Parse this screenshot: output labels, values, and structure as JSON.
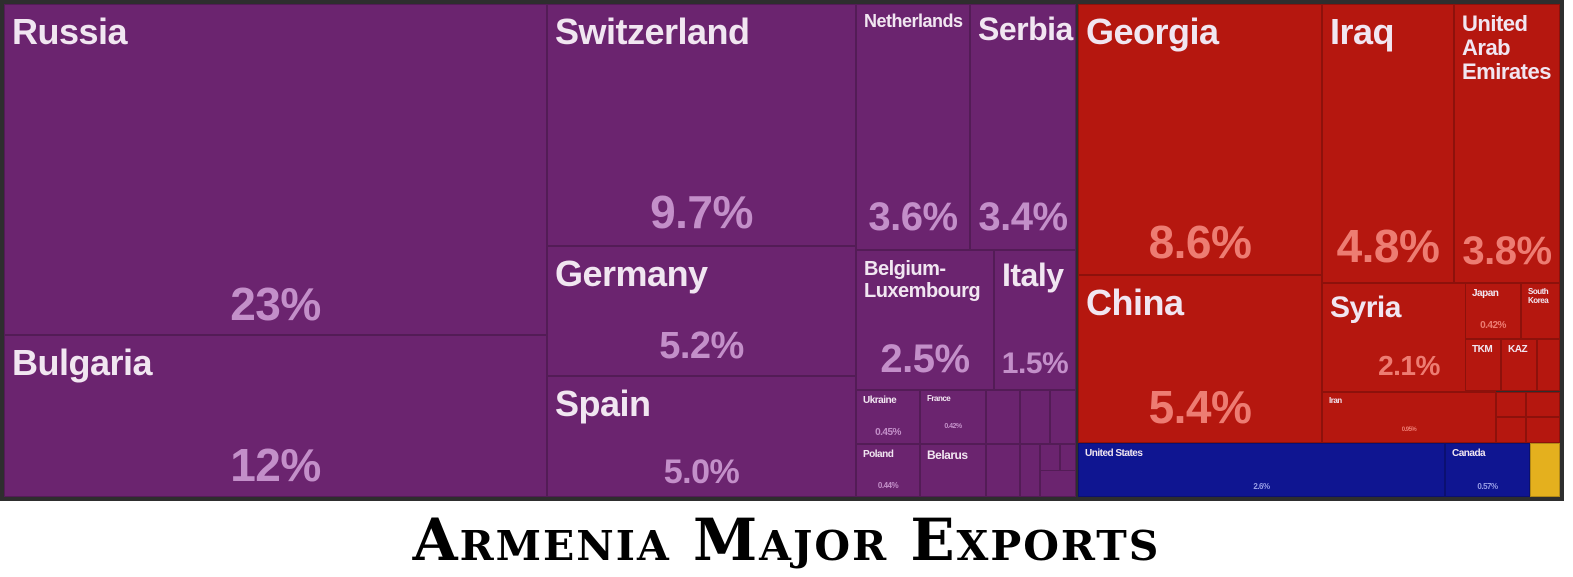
{
  "title": "Armenia Major Exports",
  "colors": {
    "europe": "#6b246f",
    "asia": "#b5170f",
    "north_america": "#0f1591",
    "other": "#e4b01e"
  },
  "chart_data": {
    "type": "treemap",
    "title": "Armenia Major Exports",
    "unit": "%",
    "tiles": [
      {
        "name": "Russia",
        "value": 23,
        "label": "23%",
        "group": "europe"
      },
      {
        "name": "Bulgaria",
        "value": 12,
        "label": "12%",
        "group": "europe"
      },
      {
        "name": "Switzerland",
        "value": 9.7,
        "label": "9.7%",
        "group": "europe"
      },
      {
        "name": "Germany",
        "value": 5.2,
        "label": "5.2%",
        "group": "europe"
      },
      {
        "name": "Spain",
        "value": 5.0,
        "label": "5.0%",
        "group": "europe"
      },
      {
        "name": "Netherlands",
        "value": 3.6,
        "label": "3.6%",
        "group": "europe"
      },
      {
        "name": "Serbia",
        "value": 3.4,
        "label": "3.4%",
        "group": "europe"
      },
      {
        "name": "Belgium-\nLuxembourg",
        "value": 2.5,
        "label": "2.5%",
        "group": "europe"
      },
      {
        "name": "Italy",
        "value": 1.5,
        "label": "1.5%",
        "group": "europe"
      },
      {
        "name": "Ukraine",
        "value": 0.45,
        "label": "0.45%",
        "group": "europe"
      },
      {
        "name": "France",
        "value": 0.42,
        "label": "0.42%",
        "group": "europe"
      },
      {
        "name": "Poland",
        "value": 0.44,
        "label": "0.44%",
        "group": "europe"
      },
      {
        "name": "Belarus",
        "value": null,
        "label": "",
        "group": "europe"
      },
      {
        "name": "Georgia",
        "value": 8.6,
        "label": "8.6%",
        "group": "asia"
      },
      {
        "name": "China",
        "value": 5.4,
        "label": "5.4%",
        "group": "asia"
      },
      {
        "name": "Iraq",
        "value": 4.8,
        "label": "4.8%",
        "group": "asia"
      },
      {
        "name": "United\nArab\nEmirates",
        "value": 3.8,
        "label": "3.8%",
        "group": "asia"
      },
      {
        "name": "Syria",
        "value": 2.1,
        "label": "2.1%",
        "group": "asia"
      },
      {
        "name": "Japan",
        "value": 0.42,
        "label": "0.42%",
        "group": "asia"
      },
      {
        "name": "South\nKorea",
        "value": null,
        "label": "",
        "group": "asia"
      },
      {
        "name": "TKM",
        "value": null,
        "label": "",
        "group": "asia"
      },
      {
        "name": "KAZ",
        "value": null,
        "label": "",
        "group": "asia"
      },
      {
        "name": "Iran",
        "value": 0.95,
        "label": "0.95%",
        "group": "asia"
      },
      {
        "name": "United States",
        "value": 2.6,
        "label": "2.6%",
        "group": "north_america"
      },
      {
        "name": "Canada",
        "value": 0.57,
        "label": "0.57%",
        "group": "north_america"
      }
    ]
  }
}
